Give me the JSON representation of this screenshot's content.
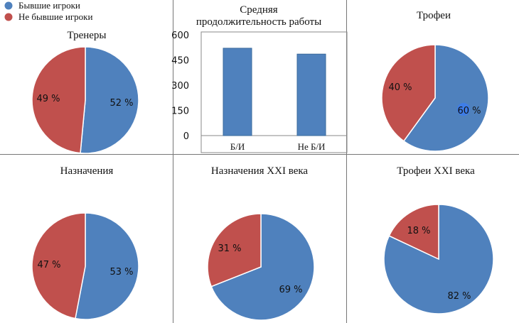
{
  "legend": {
    "former_players": {
      "label": "Бывшие игроки",
      "color": "#4f81bd"
    },
    "non_former_players": {
      "label": "Не бывшие игроки",
      "color": "#c0504d"
    }
  },
  "chart_data": [
    {
      "id": "coaches",
      "type": "pie",
      "title": "Тренеры",
      "slices": [
        {
          "name": "Бывшие игроки",
          "value": 52,
          "label": "52 %"
        },
        {
          "name": "Не бывшие игроки",
          "value": 49,
          "label": "49 %"
        }
      ]
    },
    {
      "id": "avg_tenure",
      "type": "bar",
      "title": [
        "Средняя",
        "продолжительность работы"
      ],
      "categories": [
        "Б/И",
        "Не Б/И"
      ],
      "values": [
        520,
        485
      ],
      "ylim": [
        0,
        600
      ],
      "yticks": [
        0,
        150,
        300,
        450,
        600
      ]
    },
    {
      "id": "trophies",
      "type": "pie",
      "title": "Трофеи",
      "slices": [
        {
          "name": "Бывшие игроки",
          "value": 60,
          "label": "60 %"
        },
        {
          "name": "Не бывшие игроки",
          "value": 40,
          "label": "40 %"
        }
      ]
    },
    {
      "id": "appointments",
      "type": "pie",
      "title": "Назначения",
      "slices": [
        {
          "name": "Бывшие игроки",
          "value": 53,
          "label": "53 %"
        },
        {
          "name": "Не бывшие игроки",
          "value": 47,
          "label": "47 %"
        }
      ]
    },
    {
      "id": "appointments_21",
      "type": "pie",
      "title": "Назначения XXI века",
      "slices": [
        {
          "name": "Бывшие игроки",
          "value": 69,
          "label": "69 %"
        },
        {
          "name": "Не бывшие игроки",
          "value": 31,
          "label": "31 %"
        }
      ]
    },
    {
      "id": "trophies_21",
      "type": "pie",
      "title": "Трофеи XXI века",
      "slices": [
        {
          "name": "Бывшие игроки",
          "value": 82,
          "label": "82 %"
        },
        {
          "name": "Не бывшие игроки",
          "value": 18,
          "label": "18 %"
        }
      ]
    }
  ]
}
